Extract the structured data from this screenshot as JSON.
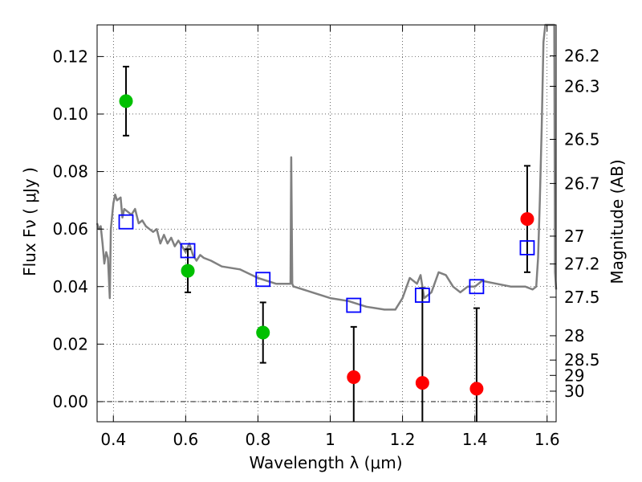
{
  "chart_data": {
    "type": "scatter",
    "xlabel": "Wavelength  λ (μm)",
    "ylabel": "Flux  Fν  ( μJy )",
    "y2label": "Magnitude (AB)",
    "xlim": [
      0.355,
      1.625
    ],
    "ylim": [
      -0.007,
      0.131
    ],
    "grid": true,
    "x_ticks": [
      0.4,
      0.6,
      0.8,
      1.0,
      1.2,
      1.4,
      1.6
    ],
    "x_tick_labels": [
      "0.4",
      "0.6",
      "0.8",
      "1",
      "1.2",
      "1.4",
      "1.6"
    ],
    "y_ticks": [
      0.0,
      0.02,
      0.04,
      0.06,
      0.08,
      0.1,
      0.12
    ],
    "y_tick_labels": [
      "0.00",
      "0.02",
      "0.04",
      "0.06",
      "0.08",
      "0.10",
      "0.12"
    ],
    "y2_tick_labels": [
      "26.2",
      "26.3",
      "26.5",
      "26.7",
      "27",
      "27.2",
      "27.5",
      "28",
      "28.5",
      "29",
      "30"
    ],
    "zero_line": 0.0,
    "observed_green": {
      "color": "#00c000",
      "points": [
        {
          "x": 0.435,
          "y": 0.1045,
          "err_low": 0.0925,
          "err_high": 0.1165
        },
        {
          "x": 0.606,
          "y": 0.0455,
          "err_low": 0.038,
          "err_high": 0.053
        },
        {
          "x": 0.814,
          "y": 0.024,
          "err_low": 0.0135,
          "err_high": 0.0345
        }
      ]
    },
    "observed_red": {
      "color": "#ff0000",
      "points": [
        {
          "x": 1.065,
          "y": 0.0085,
          "err_low": -0.01,
          "err_high": 0.026
        },
        {
          "x": 1.255,
          "y": 0.0065,
          "err_low": -0.01,
          "err_high": 0.0395
        },
        {
          "x": 1.405,
          "y": 0.0045,
          "err_low": -0.01,
          "err_high": 0.0325
        },
        {
          "x": 1.545,
          "y": 0.0635,
          "err_low": 0.045,
          "err_high": 0.082
        }
      ]
    },
    "model_squares": {
      "color": "#0000ff",
      "points": [
        {
          "x": 0.435,
          "y": 0.0625
        },
        {
          "x": 0.606,
          "y": 0.0525
        },
        {
          "x": 0.814,
          "y": 0.0425
        },
        {
          "x": 1.065,
          "y": 0.0335
        },
        {
          "x": 1.255,
          "y": 0.037
        },
        {
          "x": 1.405,
          "y": 0.04
        },
        {
          "x": 1.545,
          "y": 0.0535
        }
      ]
    },
    "template_curve": {
      "color": "#808080",
      "x": [
        0.355,
        0.36,
        0.365,
        0.37,
        0.375,
        0.38,
        0.385,
        0.39,
        0.393,
        0.4,
        0.405,
        0.41,
        0.42,
        0.425,
        0.43,
        0.44,
        0.45,
        0.46,
        0.47,
        0.48,
        0.49,
        0.5,
        0.51,
        0.52,
        0.53,
        0.54,
        0.55,
        0.56,
        0.57,
        0.58,
        0.59,
        0.6,
        0.61,
        0.62,
        0.63,
        0.64,
        0.65,
        0.67,
        0.7,
        0.75,
        0.8,
        0.85,
        0.88,
        0.89,
        0.892,
        0.895,
        0.898,
        0.9,
        0.95,
        1.0,
        1.05,
        1.1,
        1.15,
        1.18,
        1.2,
        1.22,
        1.24,
        1.25,
        1.26,
        1.28,
        1.3,
        1.32,
        1.34,
        1.36,
        1.38,
        1.4,
        1.42,
        1.46,
        1.5,
        1.54,
        1.56,
        1.57,
        1.575,
        1.58,
        1.585,
        1.59,
        1.595,
        1.6,
        1.605,
        1.61,
        1.615,
        1.62,
        1.622,
        1.625
      ],
      "y": [
        0.062,
        0.06,
        0.061,
        0.055,
        0.048,
        0.052,
        0.05,
        0.036,
        0.06,
        0.069,
        0.072,
        0.07,
        0.071,
        0.064,
        0.067,
        0.066,
        0.065,
        0.067,
        0.062,
        0.063,
        0.061,
        0.06,
        0.059,
        0.06,
        0.055,
        0.058,
        0.055,
        0.057,
        0.054,
        0.056,
        0.054,
        0.052,
        0.055,
        0.051,
        0.049,
        0.051,
        0.05,
        0.049,
        0.047,
        0.046,
        0.043,
        0.041,
        0.041,
        0.041,
        0.085,
        0.041,
        0.04,
        0.04,
        0.038,
        0.036,
        0.035,
        0.033,
        0.032,
        0.032,
        0.036,
        0.043,
        0.041,
        0.044,
        0.036,
        0.038,
        0.045,
        0.044,
        0.04,
        0.038,
        0.04,
        0.04,
        0.042,
        0.041,
        0.04,
        0.04,
        0.039,
        0.04,
        0.05,
        0.07,
        0.095,
        0.125,
        0.131,
        0.131,
        0.131,
        0.131,
        0.131,
        0.131,
        0.045,
        0.039
      ]
    }
  }
}
